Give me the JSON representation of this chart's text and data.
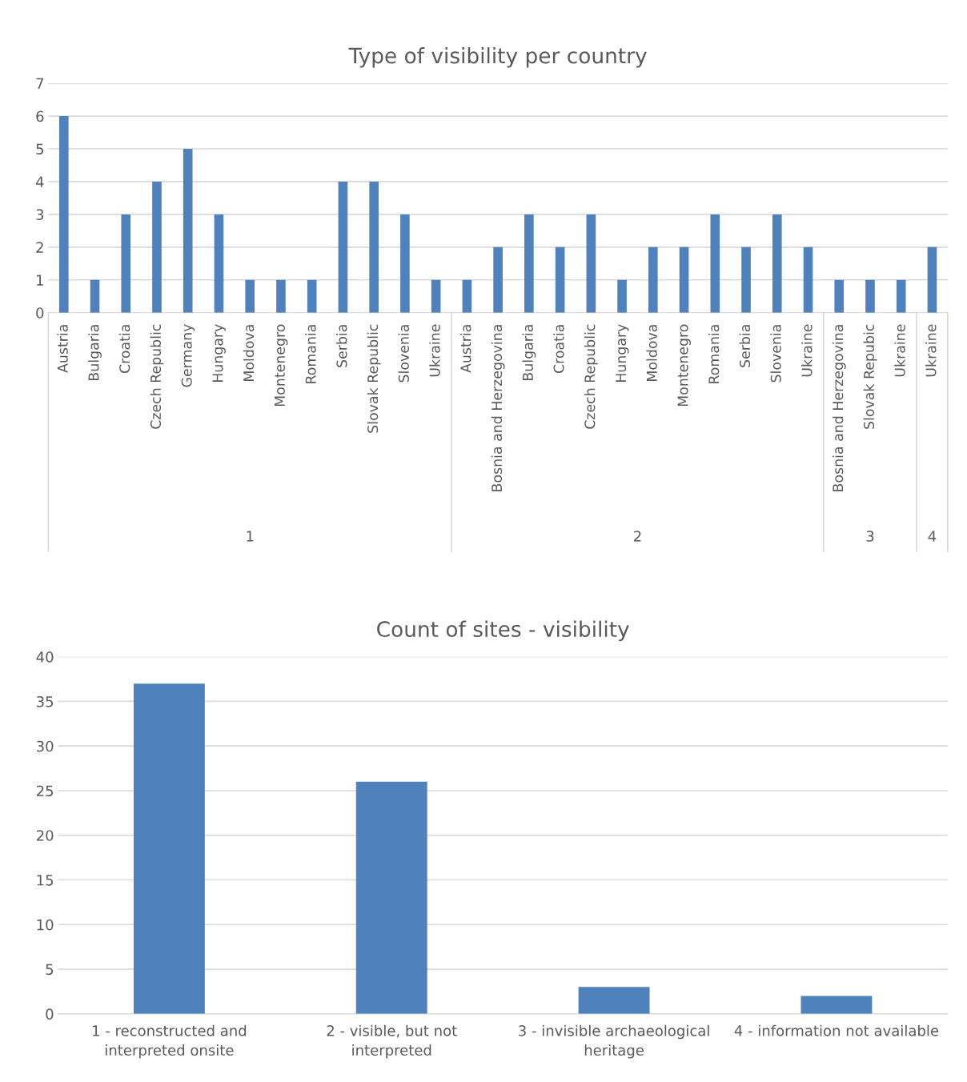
{
  "chart_data": [
    {
      "type": "bar",
      "title": "Type of visibility per country",
      "color": "#4f81bd",
      "categories": [
        "Austria",
        "Bulgaria",
        "Croatia",
        "Czech Republic",
        "Germany",
        "Hungary",
        "Moldova",
        "Montenegro",
        "Romania",
        "Serbia",
        "Slovak Republic",
        "Slovenia",
        "Ukraine",
        "Austria",
        "Bosnia and Herzegovina",
        "Bulgaria",
        "Croatia",
        "Czech Republic",
        "Hungary",
        "Moldova",
        "Montenegro",
        "Romania",
        "Serbia",
        "Slovenia",
        "Ukraine",
        "Bosnia and Herzegovina",
        "Slovak Repubic",
        "Ukraine",
        "Ukraine"
      ],
      "values": [
        6,
        1,
        3,
        4,
        5,
        3,
        1,
        1,
        1,
        4,
        4,
        3,
        1,
        1,
        2,
        3,
        2,
        3,
        1,
        2,
        2,
        3,
        2,
        3,
        2,
        1,
        1,
        1,
        2
      ],
      "annotations": [
        "1",
        "2",
        "3",
        "4"
      ],
      "ylim": [
        0,
        7
      ],
      "yticks": [
        0,
        1,
        2,
        3,
        4,
        5,
        6,
        7
      ],
      "grid": "y",
      "legend": false
    },
    {
      "type": "bar",
      "title": "Count of sites - visibility",
      "color": "#4f81bd",
      "categories": [
        "1 - reconstructed and\ninterpreted onsite",
        "2 - visible, but not\ninterpreted",
        "3 - invisible archaeological\nheritage",
        "4 - information not available"
      ],
      "values": [
        37,
        26,
        3,
        2
      ],
      "ylim": [
        0,
        40
      ],
      "yticks": [
        0,
        5,
        10,
        15,
        20,
        25,
        30,
        35,
        40
      ],
      "grid": "y",
      "legend": false
    }
  ]
}
